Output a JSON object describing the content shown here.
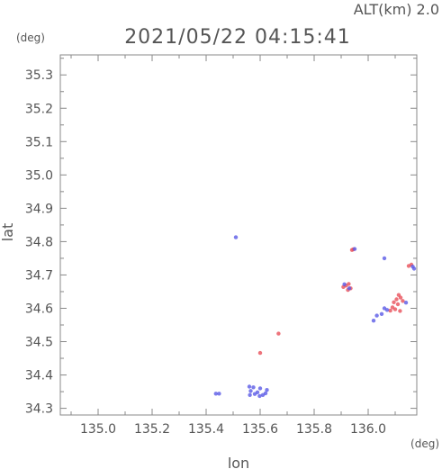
{
  "chart_data": {
    "type": "scatter",
    "title": "2021/05/22 04:15:41",
    "altitude_label": "ALT(km) 2.0",
    "xlabel": "lon",
    "ylabel": "lat",
    "x_unit": "(deg)",
    "y_unit": "(deg)",
    "xlim": [
      134.86,
      136.18
    ],
    "ylim": [
      34.28,
      35.36
    ],
    "x_ticks": [
      "135.0",
      "135.2",
      "135.4",
      "135.6",
      "135.8",
      "136.0"
    ],
    "y_ticks": [
      "34.3",
      "34.4",
      "34.5",
      "34.6",
      "34.7",
      "34.8",
      "34.9",
      "35.0",
      "35.1",
      "35.2",
      "35.3"
    ],
    "colors": {
      "frame": "#888888",
      "text": "#555555",
      "red_echo": "#e8505a",
      "blue_echo": "#5a5ae6"
    },
    "series": [
      {
        "color": "red",
        "points": [
          [
            135.928,
            34.673
          ],
          [
            135.918,
            34.668
          ],
          [
            135.935,
            34.66
          ],
          [
            135.908,
            34.664
          ],
          [
            135.925,
            34.655
          ],
          [
            135.945,
            34.777
          ],
          [
            135.94,
            34.775
          ],
          [
            136.113,
            34.64
          ],
          [
            136.12,
            34.632
          ],
          [
            136.105,
            34.627
          ],
          [
            136.128,
            34.622
          ],
          [
            136.095,
            34.618
          ],
          [
            136.11,
            34.612
          ],
          [
            136.09,
            34.603
          ],
          [
            136.1,
            34.597
          ],
          [
            136.118,
            34.592
          ],
          [
            136.082,
            34.593
          ],
          [
            136.16,
            34.731
          ],
          [
            136.15,
            34.727
          ],
          [
            135.6,
            34.466
          ],
          [
            135.668,
            34.524
          ]
        ]
      },
      {
        "color": "blue",
        "points": [
          [
            135.51,
            34.813
          ],
          [
            135.95,
            34.778
          ],
          [
            135.93,
            34.66
          ],
          [
            135.912,
            34.672
          ],
          [
            136.17,
            34.719
          ],
          [
            136.165,
            34.725
          ],
          [
            136.14,
            34.617
          ],
          [
            136.05,
            34.583
          ],
          [
            136.06,
            34.6
          ],
          [
            136.07,
            34.595
          ],
          [
            136.032,
            34.578
          ],
          [
            136.02,
            34.563
          ],
          [
            136.06,
            34.75
          ],
          [
            135.436,
            34.344
          ],
          [
            135.448,
            34.344
          ],
          [
            135.562,
            34.34
          ],
          [
            135.565,
            34.352
          ],
          [
            135.58,
            34.343
          ],
          [
            135.59,
            34.348
          ],
          [
            135.598,
            34.337
          ],
          [
            135.61,
            34.34
          ],
          [
            135.62,
            34.345
          ],
          [
            135.625,
            34.355
          ],
          [
            135.575,
            34.363
          ],
          [
            135.6,
            34.36
          ],
          [
            135.56,
            34.365
          ]
        ]
      }
    ]
  }
}
